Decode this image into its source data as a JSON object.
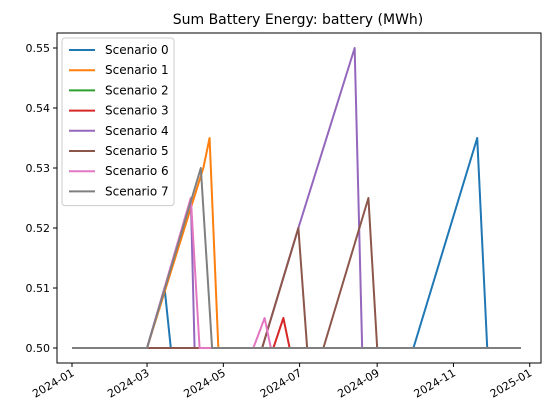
{
  "chart_data": {
    "type": "line",
    "title": "Sum Battery Energy: battery (MWh)",
    "xlabel": "",
    "ylabel": "",
    "x_type": "date",
    "xlim": [
      "2023-12-20",
      "2025-01-10"
    ],
    "ylim": [
      0.4975,
      0.5525
    ],
    "x_ticks": [
      {
        "date": "2024-01-01",
        "label": "2024-01"
      },
      {
        "date": "2024-03-01",
        "label": "2024-03"
      },
      {
        "date": "2024-05-01",
        "label": "2024-05"
      },
      {
        "date": "2024-07-01",
        "label": "2024-07"
      },
      {
        "date": "2024-09-01",
        "label": "2024-09"
      },
      {
        "date": "2024-11-01",
        "label": "2024-11"
      },
      {
        "date": "2025-01-01",
        "label": "2025-01"
      }
    ],
    "y_ticks": [
      0.5,
      0.51,
      0.52,
      0.53,
      0.54,
      0.55
    ],
    "y_tick_labels": [
      "0.50",
      "0.51",
      "0.52",
      "0.53",
      "0.54",
      "0.55"
    ],
    "grid": false,
    "legend_position": "top-left",
    "series": [
      {
        "name": "Scenario 0",
        "color": "#1f77b4",
        "points": [
          [
            "2024-01-01",
            0.5
          ],
          [
            "2024-03-01",
            0.5
          ],
          [
            "2024-03-15",
            0.51
          ],
          [
            "2024-03-20",
            0.5
          ],
          [
            "2024-09-30",
            0.5
          ],
          [
            "2024-11-20",
            0.535
          ],
          [
            "2024-11-28",
            0.5
          ],
          [
            "2024-12-25",
            0.5
          ]
        ]
      },
      {
        "name": "Scenario 1",
        "color": "#ff7f0e",
        "points": [
          [
            "2024-01-01",
            0.5
          ],
          [
            "2024-03-01",
            0.5
          ],
          [
            "2024-04-15",
            0.53
          ],
          [
            "2024-04-20",
            0.535
          ],
          [
            "2024-04-27",
            0.5
          ],
          [
            "2024-12-25",
            0.5
          ]
        ]
      },
      {
        "name": "Scenario 2",
        "color": "#2ca02c",
        "points": [
          [
            "2024-01-01",
            0.5
          ],
          [
            "2024-12-25",
            0.5
          ]
        ]
      },
      {
        "name": "Scenario 3",
        "color": "#d62728",
        "points": [
          [
            "2024-01-01",
            0.5
          ],
          [
            "2024-06-10",
            0.5
          ],
          [
            "2024-06-18",
            0.505
          ],
          [
            "2024-06-23",
            0.5
          ],
          [
            "2024-12-25",
            0.5
          ]
        ]
      },
      {
        "name": "Scenario 4",
        "color": "#9467bd",
        "points": [
          [
            "2024-01-01",
            0.5
          ],
          [
            "2024-03-01",
            0.5
          ],
          [
            "2024-04-05",
            0.525
          ],
          [
            "2024-04-08",
            0.5
          ],
          [
            "2024-06-01",
            0.5
          ],
          [
            "2024-06-30",
            0.52
          ],
          [
            "2024-08-14",
            0.55
          ],
          [
            "2024-08-20",
            0.5
          ],
          [
            "2024-12-25",
            0.5
          ]
        ]
      },
      {
        "name": "Scenario 5",
        "color": "#8c564b",
        "points": [
          [
            "2024-01-01",
            0.5
          ],
          [
            "2024-06-01",
            0.5
          ],
          [
            "2024-06-30",
            0.52
          ],
          [
            "2024-07-07",
            0.5
          ],
          [
            "2024-07-20",
            0.5
          ],
          [
            "2024-08-25",
            0.525
          ],
          [
            "2024-09-01",
            0.5
          ],
          [
            "2024-12-25",
            0.5
          ]
        ]
      },
      {
        "name": "Scenario 6",
        "color": "#e377c2",
        "points": [
          [
            "2024-01-01",
            0.5
          ],
          [
            "2024-03-01",
            0.5
          ],
          [
            "2024-04-05",
            0.525
          ],
          [
            "2024-04-12",
            0.5
          ],
          [
            "2024-05-25",
            0.5
          ],
          [
            "2024-06-03",
            0.505
          ],
          [
            "2024-06-08",
            0.5
          ],
          [
            "2024-12-25",
            0.5
          ]
        ]
      },
      {
        "name": "Scenario 7",
        "color": "#7f7f7f",
        "points": [
          [
            "2024-01-01",
            0.5
          ],
          [
            "2024-03-01",
            0.5
          ],
          [
            "2024-04-13",
            0.53
          ],
          [
            "2024-04-22",
            0.5
          ],
          [
            "2024-12-25",
            0.5
          ]
        ]
      }
    ]
  }
}
